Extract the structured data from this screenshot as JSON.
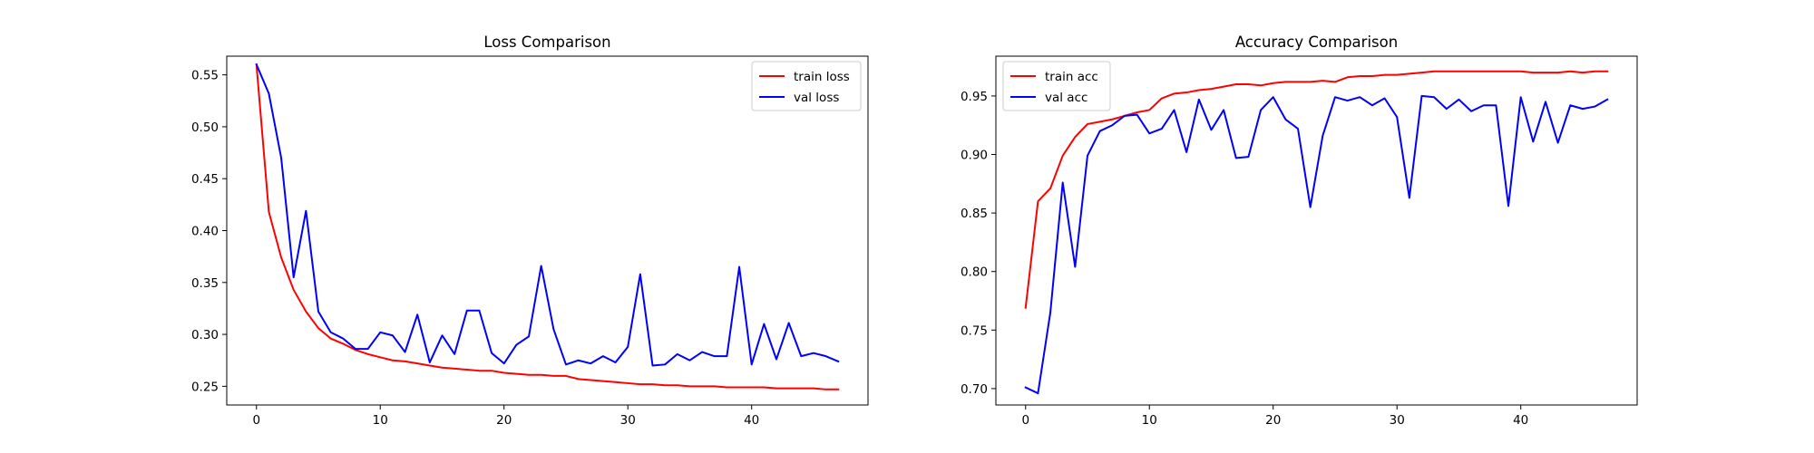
{
  "chart_data": [
    {
      "type": "line",
      "title": "Loss Comparison",
      "xlabel": "",
      "ylabel": "",
      "xlim": [
        -2.4,
        49.4
      ],
      "ylim": [
        0.232,
        0.568
      ],
      "xticks": [
        0,
        10,
        20,
        30,
        40
      ],
      "yticks": [
        0.25,
        0.3,
        0.35,
        0.4,
        0.45,
        0.5,
        0.55
      ],
      "xtick_labels": [
        "0",
        "10",
        "20",
        "30",
        "40"
      ],
      "ytick_labels": [
        "0.25",
        "0.30",
        "0.35",
        "0.40",
        "0.45",
        "0.50",
        "0.55"
      ],
      "legend_position": "upper right",
      "grid": false,
      "x": [
        0,
        1,
        2,
        3,
        4,
        5,
        6,
        7,
        8,
        9,
        10,
        11,
        12,
        13,
        14,
        15,
        16,
        17,
        18,
        19,
        20,
        21,
        22,
        23,
        24,
        25,
        26,
        27,
        28,
        29,
        30,
        31,
        32,
        33,
        34,
        35,
        36,
        37,
        38,
        39,
        40,
        41,
        42,
        43,
        44,
        45,
        46,
        47
      ],
      "series": [
        {
          "name": "train loss",
          "color": "#ff0000",
          "values": [
            0.56,
            0.418,
            0.374,
            0.343,
            0.322,
            0.306,
            0.296,
            0.291,
            0.285,
            0.281,
            0.278,
            0.275,
            0.274,
            0.272,
            0.27,
            0.268,
            0.267,
            0.266,
            0.265,
            0.265,
            0.263,
            0.262,
            0.261,
            0.261,
            0.26,
            0.26,
            0.257,
            0.256,
            0.255,
            0.254,
            0.253,
            0.252,
            0.252,
            0.251,
            0.251,
            0.25,
            0.25,
            0.25,
            0.249,
            0.249,
            0.249,
            0.249,
            0.248,
            0.248,
            0.248,
            0.248,
            0.247,
            0.247
          ]
        },
        {
          "name": "val loss",
          "color": "#0000ff",
          "values": [
            0.56,
            0.532,
            0.47,
            0.355,
            0.419,
            0.322,
            0.302,
            0.296,
            0.286,
            0.286,
            0.302,
            0.299,
            0.283,
            0.319,
            0.273,
            0.299,
            0.281,
            0.323,
            0.323,
            0.282,
            0.272,
            0.29,
            0.298,
            0.366,
            0.305,
            0.271,
            0.275,
            0.272,
            0.279,
            0.273,
            0.288,
            0.358,
            0.27,
            0.271,
            0.281,
            0.275,
            0.283,
            0.279,
            0.279,
            0.365,
            0.271,
            0.31,
            0.276,
            0.311,
            0.279,
            0.282,
            0.279,
            0.274
          ]
        }
      ]
    },
    {
      "type": "line",
      "title": "Accuracy Comparison",
      "xlabel": "",
      "ylabel": "",
      "xlim": [
        -2.4,
        49.4
      ],
      "ylim": [
        0.686,
        0.984
      ],
      "xticks": [
        0,
        10,
        20,
        30,
        40
      ],
      "yticks": [
        0.7,
        0.75,
        0.8,
        0.85,
        0.9,
        0.95
      ],
      "xtick_labels": [
        "0",
        "10",
        "20",
        "30",
        "40"
      ],
      "ytick_labels": [
        "0.70",
        "0.75",
        "0.80",
        "0.85",
        "0.90",
        "0.95"
      ],
      "legend_position": "upper left",
      "grid": false,
      "x": [
        0,
        1,
        2,
        3,
        4,
        5,
        6,
        7,
        8,
        9,
        10,
        11,
        12,
        13,
        14,
        15,
        16,
        17,
        18,
        19,
        20,
        21,
        22,
        23,
        24,
        25,
        26,
        27,
        28,
        29,
        30,
        31,
        32,
        33,
        34,
        35,
        36,
        37,
        38,
        39,
        40,
        41,
        42,
        43,
        44,
        45,
        46,
        47
      ],
      "series": [
        {
          "name": "train acc",
          "color": "#ff0000",
          "values": [
            0.769,
            0.86,
            0.871,
            0.899,
            0.915,
            0.926,
            0.928,
            0.93,
            0.933,
            0.936,
            0.938,
            0.948,
            0.952,
            0.953,
            0.955,
            0.956,
            0.958,
            0.96,
            0.96,
            0.959,
            0.961,
            0.962,
            0.962,
            0.962,
            0.963,
            0.962,
            0.966,
            0.967,
            0.967,
            0.968,
            0.968,
            0.969,
            0.97,
            0.971,
            0.971,
            0.971,
            0.971,
            0.971,
            0.971,
            0.971,
            0.971,
            0.97,
            0.97,
            0.97,
            0.971,
            0.97,
            0.971,
            0.971
          ]
        },
        {
          "name": "val acc",
          "color": "#0000ff",
          "values": [
            0.701,
            0.696,
            0.765,
            0.876,
            0.804,
            0.899,
            0.92,
            0.925,
            0.933,
            0.934,
            0.918,
            0.922,
            0.938,
            0.902,
            0.947,
            0.921,
            0.938,
            0.897,
            0.898,
            0.938,
            0.949,
            0.93,
            0.922,
            0.855,
            0.916,
            0.949,
            0.946,
            0.949,
            0.942,
            0.948,
            0.932,
            0.863,
            0.95,
            0.949,
            0.939,
            0.947,
            0.937,
            0.942,
            0.942,
            0.856,
            0.949,
            0.911,
            0.945,
            0.91,
            0.942,
            0.939,
            0.941,
            0.947
          ]
        }
      ]
    }
  ]
}
